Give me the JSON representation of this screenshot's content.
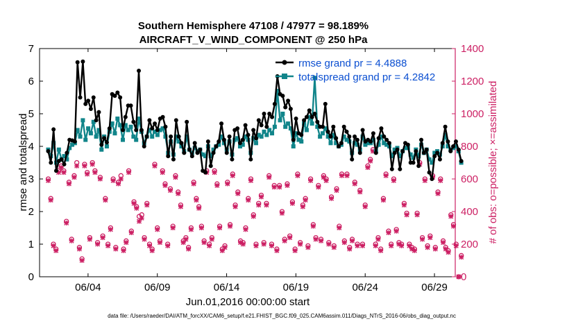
{
  "colors": {
    "rmse": "#000000",
    "spread": "#11858a",
    "obs": "#cc1f63",
    "legend_text": "#0b4fd1",
    "axis": "#000000"
  },
  "chart_data": {
    "type": "line",
    "title": "Southern Hemisphere 47108 / 47977 = 98.189%",
    "subtitle": "AIRCRAFT_V_WIND_COMPONENT @ 250 hPa",
    "xlabel": "Jun.01,2016 00:00:00 start",
    "ylabel": "rmse and totalspread",
    "ylabel_right": "# of obs: o=possible; ×=assimilated",
    "footnote": "data file: /Users/raeder/DAI/ATM_forcXX/CAM6_setup/f.e21.FHIST_BGC.f09_025.CAM6assim.011/Diags_NTrS_2016-06/obs_diag_output.nc",
    "xlim": [
      0.5,
      30.5
    ],
    "ylim": [
      0,
      7
    ],
    "ylim_right": [
      0,
      1400
    ],
    "yticks": [
      "0",
      "1",
      "2",
      "3",
      "4",
      "5",
      "6",
      "7"
    ],
    "yticks_right": [
      "0",
      "200",
      "400",
      "600",
      "800",
      "1000",
      "1200",
      "1400"
    ],
    "xticks": [
      {
        "day": 4,
        "label": "06/04"
      },
      {
        "day": 9,
        "label": "06/09"
      },
      {
        "day": 14,
        "label": "06/14"
      },
      {
        "day": 19,
        "label": "06/19"
      },
      {
        "day": 24,
        "label": "06/24"
      },
      {
        "day": 29,
        "label": "06/29"
      }
    ],
    "legend": [
      {
        "name": "rmse",
        "label": "rmse grand pr = 4.4888"
      },
      {
        "name": "totalspread",
        "label": "totalspread grand pr = 4.2842"
      }
    ],
    "series": [
      {
        "name": "rmse",
        "values": [
          3.85,
          3.5,
          4.52,
          3.25,
          3.55,
          3.6,
          3.45,
          3.8,
          4.2,
          4.18,
          4.15,
          6.58,
          5.5,
          6.6,
          5.3,
          5.4,
          5.15,
          5.5,
          4.8,
          5.05,
          4.05,
          4.25,
          4.12,
          4.55,
          5.6,
          5.55,
          5.65,
          5.5,
          4.5,
          4.9,
          5.25,
          5.25,
          4.75,
          4.5,
          6.32,
          4.5,
          4.0,
          4.3,
          4.8,
          4.55,
          4.7,
          4.5,
          4.85,
          4.9,
          4.6,
          3.7,
          4.3,
          3.6,
          4.8,
          4.3,
          4.1,
          3.8,
          4.75,
          3.9,
          3.7,
          4.1,
          3.8,
          3.9,
          3.25,
          3.2,
          4.15,
          3.4,
          3.8,
          4.0,
          4.15,
          4.7,
          4.2,
          3.8,
          4.3,
          3.6,
          4.5,
          4.55,
          4.1,
          4.2,
          4.65,
          4.35,
          3.6,
          4.5,
          4.25,
          4.8,
          4.65,
          5.0,
          4.6,
          5.0,
          4.9,
          5.3,
          6.15,
          5.6,
          5.55,
          5.2,
          5.4,
          5.15,
          4.2,
          4.85,
          4.4,
          4.35,
          4.8,
          4.9,
          5.1,
          4.9,
          5.0,
          4.75,
          4.6,
          4.6,
          5.3,
          4.45,
          4.3,
          4.6,
          4.25,
          4.0,
          4.1,
          4.6,
          4.45,
          4.3,
          3.6,
          4.3,
          4.2,
          3.8,
          4.5,
          4.15,
          4.2,
          4.15,
          4.4,
          3.8,
          4.25,
          4.55,
          4.3,
          4.2,
          4.1,
          3.3,
          3.8,
          3.9,
          3.3,
          3.85,
          4.1,
          4.05,
          3.5,
          3.5,
          3.85,
          3.4,
          4.2,
          3.8,
          3.9,
          3.2,
          3.0,
          3.7,
          3.8,
          3.6,
          4.1,
          4.6,
          4.15,
          3.85,
          4.0,
          4.15,
          3.9,
          3.55
        ]
      },
      {
        "name": "totalspread",
        "values": [
          3.9,
          3.7,
          4.1,
          3.5,
          3.9,
          3.6,
          3.7,
          3.6,
          3.95,
          4.05,
          4.1,
          4.5,
          4.3,
          4.8,
          4.2,
          4.55,
          4.4,
          4.75,
          4.3,
          4.5,
          3.9,
          4.3,
          4.0,
          4.45,
          4.7,
          4.4,
          4.85,
          4.65,
          4.2,
          4.65,
          4.5,
          4.6,
          4.3,
          4.2,
          4.85,
          4.45,
          4.1,
          4.3,
          4.5,
          4.3,
          4.45,
          4.35,
          4.5,
          4.55,
          4.3,
          3.8,
          4.15,
          3.75,
          4.3,
          4.15,
          4.0,
          3.85,
          4.3,
          3.9,
          3.8,
          3.95,
          3.85,
          3.9,
          3.75,
          3.7,
          4.0,
          3.7,
          3.9,
          4.0,
          4.05,
          4.3,
          4.1,
          3.9,
          4.15,
          3.75,
          4.2,
          4.25,
          4.0,
          4.05,
          4.3,
          4.2,
          3.8,
          4.25,
          4.1,
          4.35,
          4.3,
          4.45,
          4.35,
          4.5,
          4.4,
          4.6,
          5.7,
          4.8,
          5.0,
          4.6,
          4.7,
          4.55,
          4.0,
          4.4,
          4.2,
          4.15,
          4.7,
          4.5,
          4.9,
          4.7,
          6.1,
          4.6,
          4.3,
          4.4,
          4.55,
          4.3,
          4.1,
          4.35,
          4.1,
          4.0,
          4.05,
          4.3,
          4.2,
          4.15,
          3.8,
          4.1,
          4.05,
          3.9,
          4.3,
          4.05,
          4.1,
          4.1,
          4.2,
          3.85,
          4.05,
          4.3,
          4.1,
          4.05,
          4.0,
          3.7,
          3.9,
          3.95,
          3.7,
          3.85,
          3.95,
          3.95,
          3.75,
          3.65,
          3.9,
          3.7,
          4.05,
          3.8,
          3.9,
          3.6,
          3.5,
          3.8,
          3.85,
          3.75,
          4.0,
          4.35,
          4.0,
          3.9,
          3.95,
          4.0,
          3.85,
          3.5
        ]
      },
      {
        "name": "obs_possible",
        "values": [
          600,
          480,
          200,
          170,
          650,
          680,
          650,
          340,
          580,
          230,
          620,
          700,
          180,
          110,
          690,
          640,
          240,
          700,
          650,
          210,
          610,
          250,
          480,
          200,
          300,
          600,
          180,
          580,
          620,
          170,
          220,
          650,
          280,
          460,
          430,
          370,
          380,
          240,
          450,
          200,
          170,
          690,
          300,
          220,
          650,
          570,
          200,
          540,
          310,
          620,
          520,
          440,
          220,
          240,
          180,
          300,
          580,
          480,
          430,
          310,
          220,
          650,
          200,
          240,
          650,
          570,
          310,
          170,
          190,
          580,
          320,
          630,
          440,
          520,
          220,
          210,
          300,
          480,
          600,
          380,
          200,
          450,
          500,
          210,
          450,
          620,
          200,
          560,
          170,
          560,
          400,
          230,
          570,
          250,
          460,
          170,
          630,
          210,
          440,
          480,
          190,
          600,
          320,
          240,
          560,
          230,
          620,
          600,
          210,
          490,
          190,
          540,
          310,
          630,
          220,
          630,
          180,
          230,
          580,
          200,
          530,
          200,
          440,
          680,
          720,
          780,
          200,
          240,
          170,
          480,
          630,
          280,
          200,
          600,
          290,
          210,
          200,
          450,
          390,
          200,
          180,
          170,
          390,
          700,
          240,
          600,
          190,
          250,
          620,
          180,
          520,
          600,
          220,
          180,
          160,
          380,
          320,
          200,
          0,
          130
        ]
      },
      {
        "name": "obs_assimilated",
        "values": [
          590,
          470,
          190,
          160,
          640,
          670,
          640,
          330,
          570,
          220,
          610,
          680,
          170,
          100,
          680,
          630,
          230,
          690,
          640,
          200,
          600,
          240,
          470,
          190,
          290,
          590,
          170,
          570,
          600,
          160,
          210,
          640,
          270,
          450,
          420,
          340,
          360,
          230,
          440,
          190,
          160,
          680,
          290,
          210,
          640,
          560,
          190,
          530,
          300,
          610,
          510,
          430,
          210,
          230,
          170,
          290,
          570,
          470,
          420,
          300,
          210,
          640,
          190,
          230,
          640,
          560,
          300,
          160,
          180,
          570,
          310,
          620,
          430,
          510,
          210,
          200,
          290,
          470,
          590,
          370,
          190,
          440,
          490,
          200,
          440,
          610,
          190,
          550,
          160,
          550,
          390,
          220,
          560,
          240,
          450,
          160,
          620,
          200,
          430,
          470,
          180,
          590,
          310,
          230,
          550,
          220,
          610,
          590,
          200,
          480,
          180,
          530,
          300,
          620,
          210,
          620,
          170,
          220,
          570,
          190,
          520,
          190,
          430,
          670,
          710,
          770,
          190,
          230,
          160,
          470,
          620,
          270,
          190,
          590,
          280,
          200,
          190,
          440,
          380,
          190,
          170,
          160,
          380,
          690,
          230,
          590,
          180,
          240,
          610,
          170,
          510,
          590,
          210,
          170,
          150,
          370,
          310,
          190,
          0,
          120
        ]
      }
    ]
  }
}
